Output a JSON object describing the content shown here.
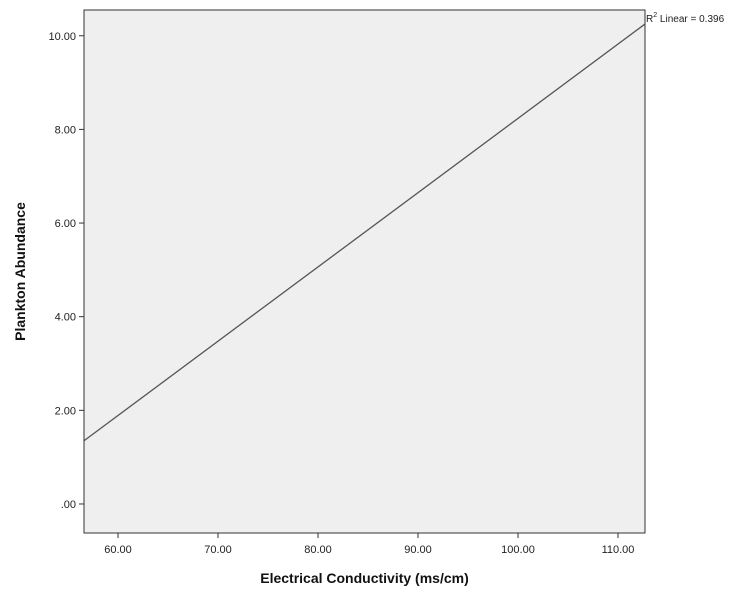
{
  "chart_data": {
    "type": "line",
    "title": "",
    "xlabel": "Electrical Conductivity (ms/cm)",
    "ylabel": "Plankton Abundance",
    "xlim": [
      56.6,
      112.7
    ],
    "ylim": [
      -0.62,
      10.55
    ],
    "x_ticks": [
      60,
      70,
      80,
      90,
      100,
      110
    ],
    "x_tick_labels": [
      "60.00",
      "70.00",
      "80.00",
      "90.00",
      "100.00",
      "110.00"
    ],
    "y_ticks": [
      0,
      2,
      4,
      6,
      8,
      10
    ],
    "y_tick_labels": [
      ".00",
      "2.00",
      "4.00",
      "6.00",
      "8.00",
      "10.00"
    ],
    "grid": false,
    "series": [
      {
        "x": [
          56.6,
          112.7
        ],
        "y": [
          1.35,
          10.25
        ]
      }
    ],
    "annotation": {
      "prefix": "R",
      "superscript": "2",
      "text": " Linear = 0.396"
    }
  },
  "colors": {
    "plot_background": "#efefef",
    "line": "#555555",
    "frame": "#333333"
  }
}
